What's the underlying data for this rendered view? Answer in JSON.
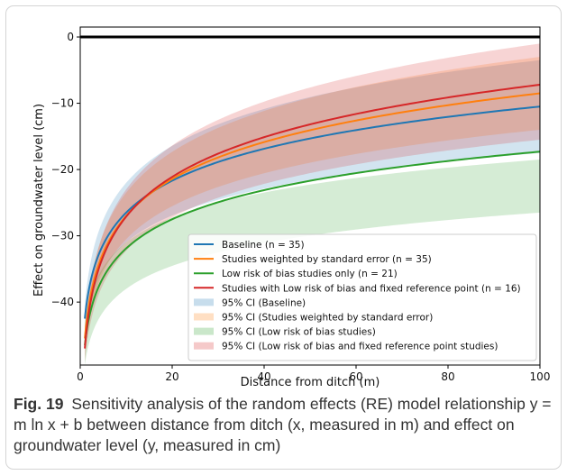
{
  "figure": {
    "label": "Fig. 19",
    "caption": "Sensitivity analysis of the random effects (RE) model relationship y = m ln x + b between distance from ditch (x, measured in m) and effect on groundwater level (y, measured in cm)"
  },
  "chart_data": {
    "type": "line",
    "title": "",
    "xlabel": "Distance from ditch (m)",
    "ylabel": "Effect on groundwater level (cm)",
    "xlim": [
      0,
      100
    ],
    "ylim": [
      -49.5,
      1.5
    ],
    "xticks": [
      0,
      20,
      40,
      60,
      80,
      100
    ],
    "yticks": [
      0,
      -10,
      -20,
      -30,
      -40
    ],
    "grid": false,
    "legend_position": "lower-right",
    "reference_line": {
      "y": 0,
      "color": "#000000"
    },
    "model": "y = m ln x + b",
    "x_range": [
      1,
      100
    ],
    "series": [
      {
        "name": "Baseline (n = 35)",
        "color": "#1f77b4",
        "x": [
          1,
          10,
          100
        ],
        "y": [
          -42.5,
          -26.5,
          -10.5
        ]
      },
      {
        "name": "Studies weighted by standard error (n = 35)",
        "color": "#ff7f0e",
        "x": [
          1,
          10,
          100
        ],
        "y": [
          -45.5,
          -27.0,
          -8.5
        ]
      },
      {
        "name": "Low risk of bias studies only (n = 21)",
        "color": "#2ca02c",
        "x": [
          1,
          10,
          100
        ],
        "y": [
          -46.5,
          -31.9,
          -17.3
        ]
      },
      {
        "name": "Studies with Low risk of bias and fixed reference point (n = 16)",
        "color": "#d62728",
        "x": [
          1,
          10,
          100
        ],
        "y": [
          -47.0,
          -27.1,
          -7.2
        ]
      }
    ],
    "ci_bands": [
      {
        "name": "95% CI (Baseline)",
        "color": "#1f77b4",
        "x": [
          1,
          10,
          100
        ],
        "lower": [
          -44.5,
          -31.0,
          -17.5
        ],
        "upper": [
          -40.5,
          -22.0,
          -3.5
        ]
      },
      {
        "name": "95% CI (Studies weighted by standard error)",
        "color": "#ff7f0e",
        "x": [
          1,
          10,
          100
        ],
        "lower": [
          -47.0,
          -30.5,
          -14.0
        ],
        "upper": [
          -44.0,
          -23.5,
          -3.0
        ]
      },
      {
        "name": "95% CI (Low risk of bias studies)",
        "color": "#2ca02c",
        "x": [
          1,
          10,
          100
        ],
        "lower": [
          -49.5,
          -38.0,
          -26.5
        ],
        "upper": [
          -43.5,
          -31.0,
          -18.5
        ]
      },
      {
        "name": "95% CI (Low risk of bias and fixed reference point studies)",
        "color": "#d62728",
        "x": [
          1,
          10,
          100
        ],
        "lower": [
          -49.0,
          -32.3,
          -15.5
        ],
        "upper": [
          -45.0,
          -23.0,
          -1.0
        ]
      }
    ]
  }
}
